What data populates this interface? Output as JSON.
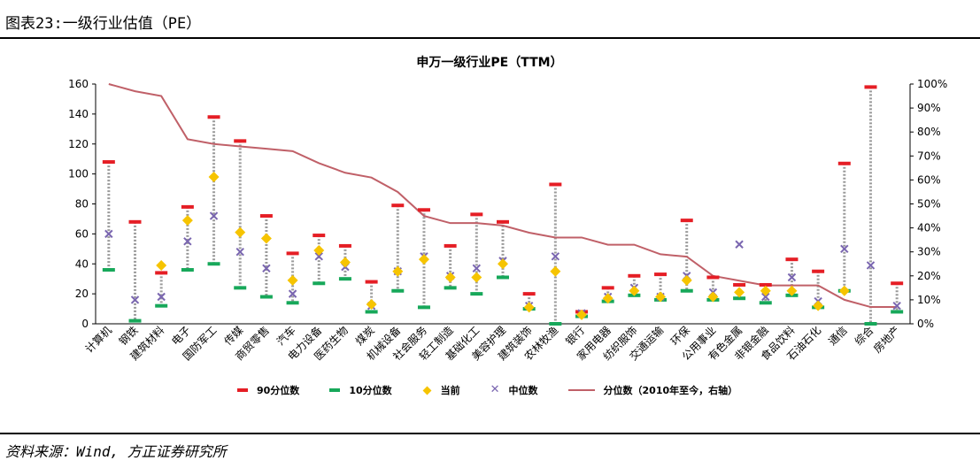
{
  "header": {
    "title": "图表23:一级行业估值（PE）"
  },
  "footer": {
    "source": "资料来源：Wind, 方正证券研究所"
  },
  "legend": {
    "p90": "90分位数",
    "p10": "10分位数",
    "current": "当前",
    "median": "中位数",
    "percentile": "分位数（2010年至今，右轴）"
  },
  "colors": {
    "p90": "#e51e25",
    "p10": "#17a85a",
    "current": "#f6c400",
    "median": "#7a66b0",
    "percentile": "#c06068",
    "whisker": "#9a9a9a"
  },
  "chart_data": {
    "type": "box-range with percentile line",
    "title": "申万一级行业PE（TTM）",
    "ylim": [
      0,
      160
    ],
    "yticks": [
      0,
      20,
      40,
      60,
      80,
      100,
      120,
      140,
      160
    ],
    "y2lim": [
      0,
      100
    ],
    "y2ticks": [
      "0%",
      "10%",
      "20%",
      "30%",
      "40%",
      "50%",
      "60%",
      "70%",
      "80%",
      "90%",
      "100%"
    ],
    "categories": [
      "计算机",
      "钢铁",
      "建筑材料",
      "电子",
      "国防军工",
      "传媒",
      "商贸零售",
      "汽车",
      "电力设备",
      "医药生物",
      "煤炭",
      "机械设备",
      "社会服务",
      "轻工制造",
      "基础化工",
      "美容护理",
      "建筑装饰",
      "农林牧渔",
      "银行",
      "家用电器",
      "纺织服饰",
      "交通运输",
      "环保",
      "公用事业",
      "有色金属",
      "非银金融",
      "食品饮料",
      "石油石化",
      "通信",
      "综合",
      "房地产"
    ],
    "series": [
      {
        "name": "90分位数",
        "values": [
          108,
          68,
          34,
          78,
          138,
          122,
          72,
          47,
          59,
          52,
          28,
          79,
          76,
          52,
          73,
          68,
          20,
          93,
          8,
          24,
          32,
          33,
          69,
          31,
          26,
          26,
          43,
          35,
          107,
          158,
          27
        ]
      },
      {
        "name": "10分位数",
        "values": [
          36,
          2,
          12,
          36,
          40,
          24,
          18,
          14,
          27,
          30,
          8,
          22,
          11,
          24,
          20,
          31,
          10,
          0,
          5,
          15,
          19,
          16,
          22,
          16,
          17,
          14,
          19,
          11,
          22,
          0,
          8
        ]
      },
      {
        "name": "当前",
        "values": [
          null,
          null,
          39,
          69,
          98,
          61,
          57,
          29,
          49,
          41,
          13,
          35,
          43,
          31,
          31,
          40,
          11,
          35,
          6,
          17,
          22,
          18,
          29,
          18,
          21,
          22,
          22,
          12,
          22,
          null,
          null
        ]
      },
      {
        "name": "中位数",
        "values": [
          60,
          16,
          18,
          55,
          72,
          48,
          37,
          20,
          45,
          38,
          12,
          35,
          45,
          32,
          37,
          42,
          12,
          45,
          7,
          18,
          24,
          18,
          32,
          21,
          53,
          18,
          31,
          15,
          50,
          39,
          12
        ]
      },
      {
        "name": "分位数（2010年至今，右轴）",
        "values": [
          100,
          97,
          95,
          77,
          75,
          74,
          73,
          72,
          67,
          63,
          61,
          55,
          45,
          42,
          42,
          41,
          38,
          36,
          36,
          33,
          33,
          29,
          28,
          20,
          18,
          16,
          16,
          16,
          10,
          7,
          7
        ]
      }
    ]
  }
}
